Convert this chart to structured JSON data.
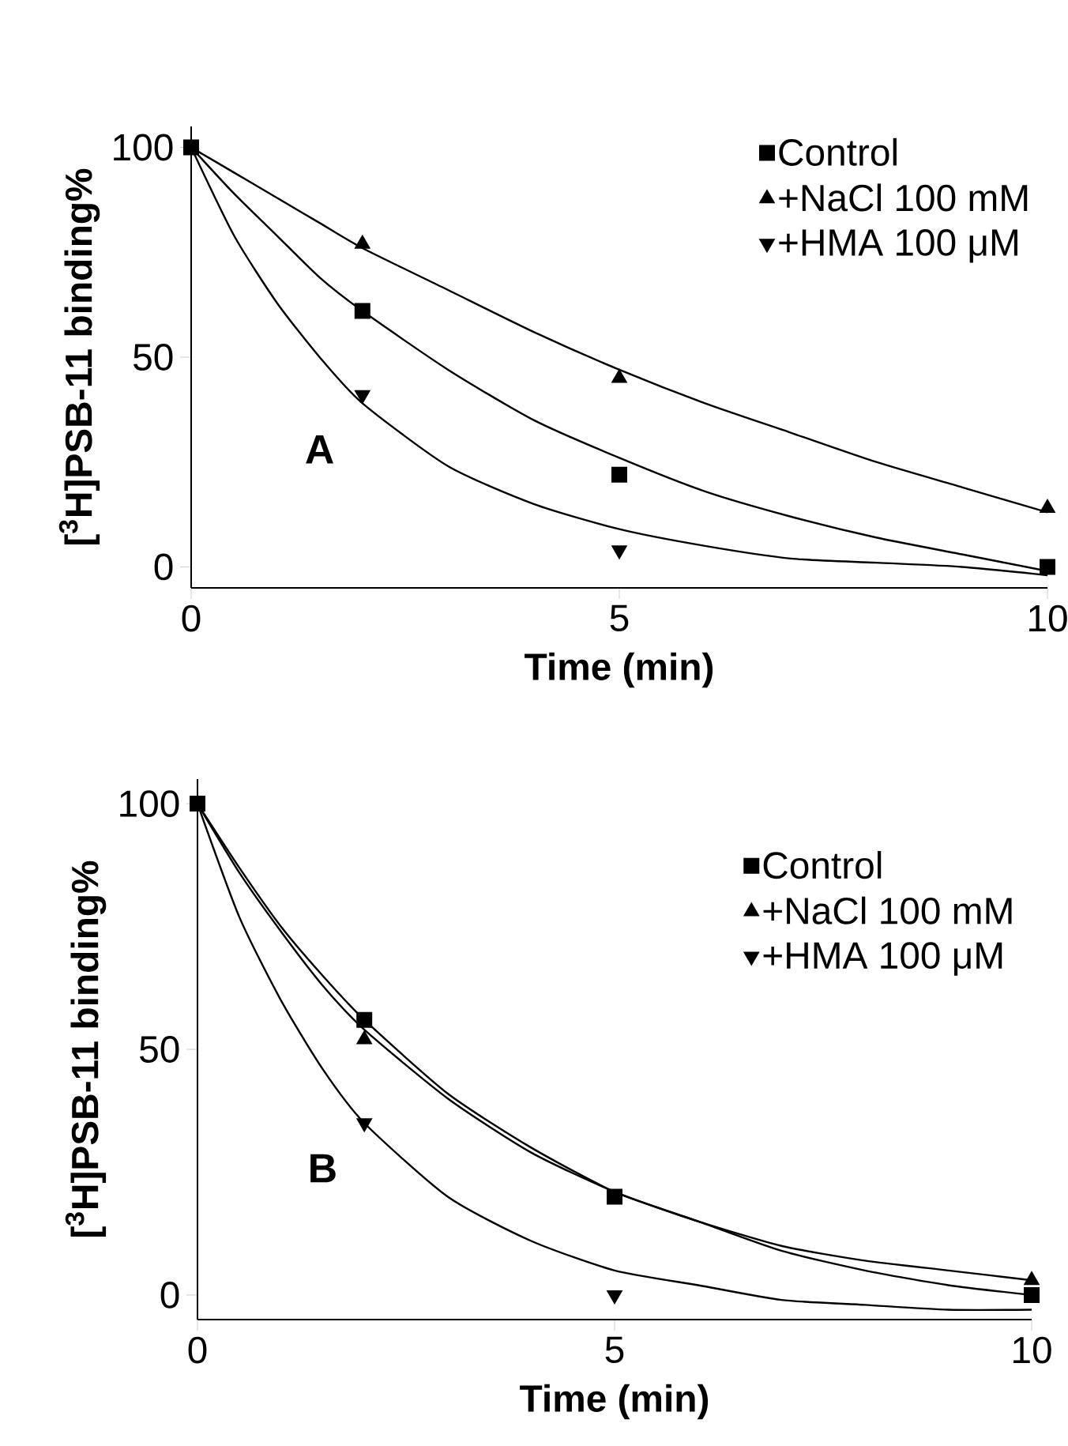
{
  "chart_data": [
    {
      "type": "scatter",
      "xlabel": "Time (min)",
      "ylabel": "[$^{3}$H]PSB-11 binding%",
      "annotations": [
        "A"
      ],
      "x": [
        0,
        2,
        5,
        10
      ],
      "xlim": [
        0,
        10
      ],
      "ylim": [
        -5,
        105
      ],
      "xticks": [
        0,
        5,
        10
      ],
      "yticks": [
        0,
        50,
        100
      ],
      "legend": "top right",
      "series": [
        {
          "name": "Control",
          "color": "#000000",
          "marker": "square",
          "values": [
            100,
            61,
            22,
            0
          ]
        },
        {
          "name": "+NaCl 100 mM",
          "color": "#000000",
          "marker": "triangle",
          "values": [
            null,
            77,
            45,
            14
          ]
        },
        {
          "name": "+HMA 100 μM",
          "color": "#000000",
          "marker": "triangle-down",
          "values": [
            null,
            41,
            4,
            null
          ]
        },
        {
          "type": "line",
          "color": "#000000",
          "marker": "none",
          "line_style": "solid",
          "x": [
            0,
            0.5,
            1,
            1.5,
            2,
            3,
            4,
            5,
            6,
            7,
            8,
            9,
            10
          ],
          "values": [
            100,
            89,
            79,
            69,
            61,
            47,
            35,
            26,
            18,
            12,
            7,
            3,
            -1
          ]
        },
        {
          "type": "line",
          "color": "#000000",
          "marker": "none",
          "line_style": "solid",
          "x": [
            0,
            0.5,
            1,
            1.5,
            2,
            3,
            4,
            5,
            6,
            7,
            8,
            9,
            10
          ],
          "values": [
            100,
            94,
            88,
            82,
            76,
            66,
            56,
            47,
            39,
            32,
            25,
            19,
            13
          ]
        },
        {
          "type": "line",
          "color": "#000000",
          "marker": "none",
          "line_style": "solid",
          "x": [
            0,
            0.5,
            1,
            1.5,
            2,
            3,
            4,
            5,
            6,
            7,
            8,
            9,
            10
          ],
          "values": [
            100,
            79,
            63,
            50,
            39,
            24,
            15,
            9,
            5,
            2,
            1,
            0,
            -2
          ]
        }
      ]
    },
    {
      "type": "scatter",
      "xlabel": "Time (min)",
      "ylabel": "[$^{3}$H]PSB-11 binding%",
      "annotations": [
        "B"
      ],
      "x": [
        0,
        2,
        5,
        10
      ],
      "xlim": [
        0,
        10
      ],
      "ylim": [
        -5,
        105
      ],
      "xticks": [
        0,
        5,
        10
      ],
      "yticks": [
        0,
        50,
        100
      ],
      "legend": "right",
      "series": [
        {
          "name": "Control",
          "color": "#000000",
          "marker": "square",
          "values": [
            100,
            56,
            20,
            0
          ]
        },
        {
          "name": "+NaCl 100 mM",
          "color": "#000000",
          "marker": "triangle",
          "values": [
            null,
            52,
            null,
            3
          ]
        },
        {
          "name": "+HMA 100 μM",
          "color": "#000000",
          "marker": "triangle-down",
          "values": [
            null,
            35,
            0,
            null
          ]
        },
        {
          "type": "line",
          "color": "#000000",
          "marker": "none",
          "line_style": "solid",
          "x": [
            0,
            0.5,
            1,
            1.5,
            2,
            3,
            4,
            5,
            6,
            7,
            8,
            9,
            10
          ],
          "values": [
            100,
            87,
            75,
            65,
            56,
            41,
            30,
            21,
            15,
            9,
            5,
            2,
            0
          ]
        },
        {
          "type": "line",
          "color": "#000000",
          "marker": "none",
          "line_style": "solid",
          "x": [
            0,
            0.5,
            1,
            1.5,
            2,
            3,
            4,
            5,
            6,
            7,
            8,
            9,
            10
          ],
          "values": [
            100,
            86,
            74,
            63,
            54,
            40,
            29,
            21,
            15,
            10,
            7,
            5,
            3
          ]
        },
        {
          "type": "line",
          "color": "#000000",
          "marker": "none",
          "line_style": "solid",
          "x": [
            0,
            0.5,
            1,
            1.5,
            2,
            3,
            4,
            5,
            6,
            7,
            8,
            9,
            10
          ],
          "values": [
            100,
            77,
            60,
            46,
            35,
            20,
            11,
            5,
            2,
            -1,
            -2,
            -3,
            -3
          ]
        }
      ]
    }
  ]
}
